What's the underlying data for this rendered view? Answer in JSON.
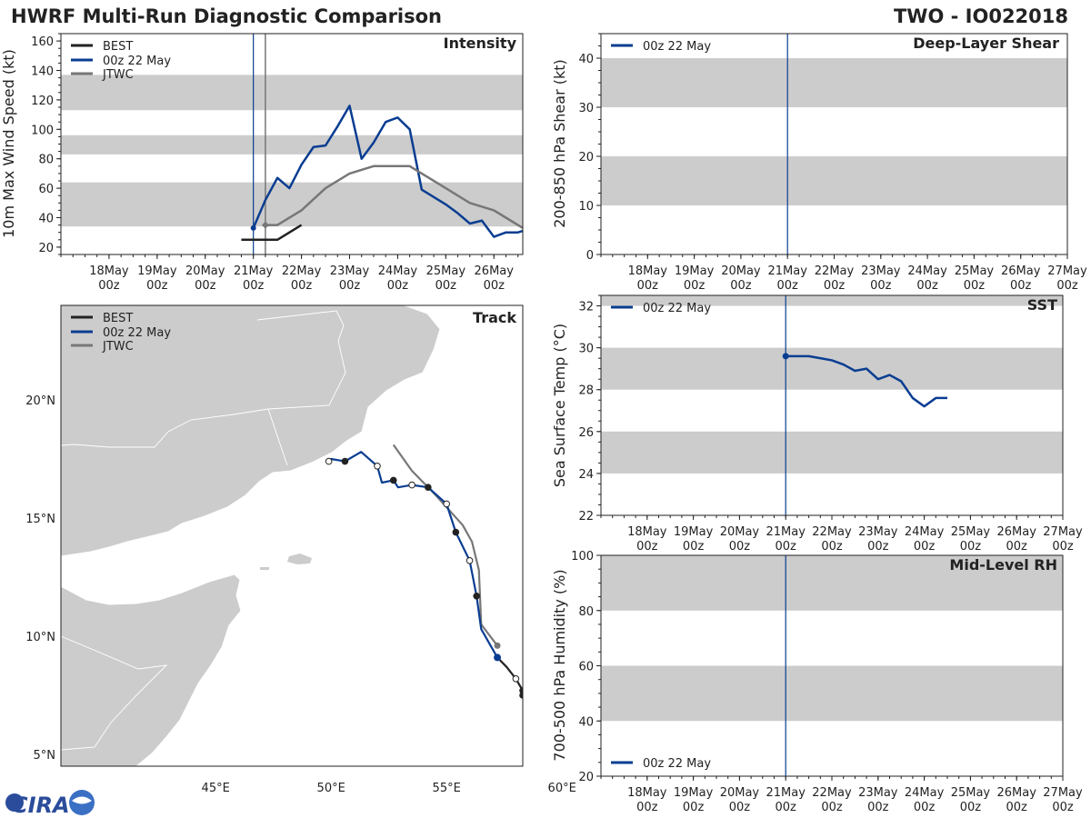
{
  "header": {
    "title": "HWRF Multi-Run Diagnostic Comparison",
    "storm_id": "TWO - IO022018"
  },
  "colors": {
    "best": "#222222",
    "run": "#0a3d91",
    "jtwc": "#777777",
    "band": "#cccccc",
    "land": "#cccccc"
  },
  "day_ticks": [
    "18May\n00z",
    "19May\n00z",
    "20May\n00z",
    "21May\n00z",
    "22May\n00z",
    "23May\n00z",
    "24May\n00z",
    "25May\n00z",
    "26May\n00z",
    "27May\n00z"
  ],
  "logo": {
    "text": "CIRA"
  },
  "chart_data": [
    {
      "id": "intensity",
      "type": "line",
      "title": "Intensity",
      "ylabel": "10m Max Wind Speed (kt)",
      "ylim": [
        15,
        165
      ],
      "yticks": [
        "20",
        "40",
        "60",
        "80",
        "100",
        "120",
        "140",
        "160"
      ],
      "xlim_days": [
        0.0,
        9.6
      ],
      "init_day": 4.0,
      "jtwc_init_day": 4.25,
      "bands": [
        [
          34,
          64
        ],
        [
          83,
          96
        ],
        [
          113,
          137
        ]
      ],
      "legend": [
        "BEST",
        "00z 22 May",
        "JTWC"
      ],
      "series": [
        {
          "name": "BEST",
          "x": [
            3.75,
            4.5,
            5.0
          ],
          "y": [
            25,
            25,
            35
          ]
        },
        {
          "name": "00z 22 May",
          "x": [
            4.0,
            4.25,
            4.5,
            4.75,
            5.0,
            5.25,
            5.5,
            5.75,
            6.0,
            6.25,
            6.5,
            6.75,
            7.0,
            7.25,
            7.5,
            7.75,
            8.0,
            8.25,
            8.5,
            8.75,
            9.0,
            9.25,
            9.5,
            9.6
          ],
          "y": [
            33,
            52,
            67,
            60,
            76,
            88,
            89,
            102,
            116,
            80,
            91,
            105,
            108,
            100,
            59,
            54,
            49,
            43,
            36,
            38,
            27,
            30,
            30,
            31
          ]
        },
        {
          "name": "JTWC",
          "x": [
            4.25,
            4.5,
            5.0,
            5.5,
            6.0,
            6.5,
            7.0,
            7.25,
            8.0,
            8.5,
            9.0,
            9.25,
            9.6
          ],
          "y": [
            35,
            35,
            45,
            60,
            70,
            75,
            75,
            75,
            60,
            50,
            45,
            40,
            33
          ]
        }
      ]
    },
    {
      "id": "shear",
      "type": "line",
      "title": "Deep-Layer Shear",
      "ylabel": "200-850 hPa Shear (kt)",
      "ylim": [
        0,
        45
      ],
      "yticks": [
        "0",
        "10",
        "20",
        "30",
        "40"
      ],
      "xlim_days": [
        0.0,
        10.0
      ],
      "init_day": 4.0,
      "bands": [
        [
          10,
          20
        ],
        [
          30,
          40
        ]
      ],
      "legend": [
        "00z 22 May"
      ],
      "series": []
    },
    {
      "id": "sst",
      "type": "line",
      "title": "SST",
      "ylabel": "Sea Surface Temp (°C)",
      "ylim": [
        22,
        32.5
      ],
      "yticks": [
        "22",
        "24",
        "26",
        "28",
        "30",
        "32"
      ],
      "xlim_days": [
        0.0,
        10.0
      ],
      "init_day": 4.0,
      "bands": [
        [
          24,
          26
        ],
        [
          28,
          30
        ],
        [
          32,
          34
        ]
      ],
      "legend": [
        "00z 22 May"
      ],
      "series": [
        {
          "name": "00z 22 May",
          "x": [
            4.0,
            4.25,
            4.5,
            4.75,
            5.0,
            5.25,
            5.5,
            5.75,
            6.0,
            6.25,
            6.5,
            6.75,
            7.0,
            7.25,
            7.5
          ],
          "y": [
            29.6,
            29.6,
            29.6,
            29.5,
            29.4,
            29.2,
            28.9,
            29.0,
            28.5,
            28.7,
            28.4,
            27.6,
            27.2,
            27.6,
            27.6
          ]
        }
      ]
    },
    {
      "id": "rh",
      "type": "line",
      "title": "Mid-Level RH",
      "ylabel": "700-500 hPa Humidity (%)",
      "ylim": [
        20,
        100
      ],
      "yticks": [
        "20",
        "40",
        "60",
        "80",
        "100"
      ],
      "xlim_days": [
        0.0,
        10.0
      ],
      "init_day": 4.0,
      "bands": [
        [
          40,
          60
        ],
        [
          80,
          100
        ]
      ],
      "legend": [
        "00z 22 May"
      ],
      "series": []
    },
    {
      "id": "track",
      "type": "scatter",
      "title": "Track",
      "lon_range": [
        38.3,
        58.3
      ],
      "lat_range": [
        4.5,
        24.0
      ],
      "lon_ticks": [
        "45°E",
        "50°E",
        "55°E",
        "60°E"
      ],
      "lat_ticks": [
        "5°N",
        "10°N",
        "15°N",
        "20°N"
      ],
      "legend": [
        "BEST",
        "00z 22 May",
        "JTWC"
      ],
      "series": [
        {
          "name": "BEST",
          "lon": [
            57.2,
            57.6,
            58.0,
            58.3,
            58.3
          ],
          "lat": [
            9.1,
            8.7,
            8.2,
            7.7,
            7.5
          ]
        },
        {
          "name": "00z 22 May",
          "lon": [
            57.2,
            56.5,
            56.3,
            56.0,
            55.6,
            55.4,
            55.0,
            54.2,
            53.5,
            52.9,
            52.7,
            52.2,
            52.0,
            51.3,
            50.6,
            50.0,
            49.9
          ],
          "lat": [
            9.1,
            10.3,
            11.7,
            13.2,
            14.0,
            14.4,
            15.6,
            16.3,
            16.4,
            16.3,
            16.6,
            16.5,
            17.2,
            17.8,
            17.4,
            17.5,
            17.4
          ]
        },
        {
          "name": "JTWC",
          "lon": [
            57.2,
            56.5,
            56.4,
            56.1,
            55.7,
            54.5,
            53.5,
            52.7
          ],
          "lat": [
            9.6,
            10.5,
            12.8,
            14.0,
            14.7,
            16.0,
            17.0,
            18.1
          ]
        }
      ]
    }
  ]
}
